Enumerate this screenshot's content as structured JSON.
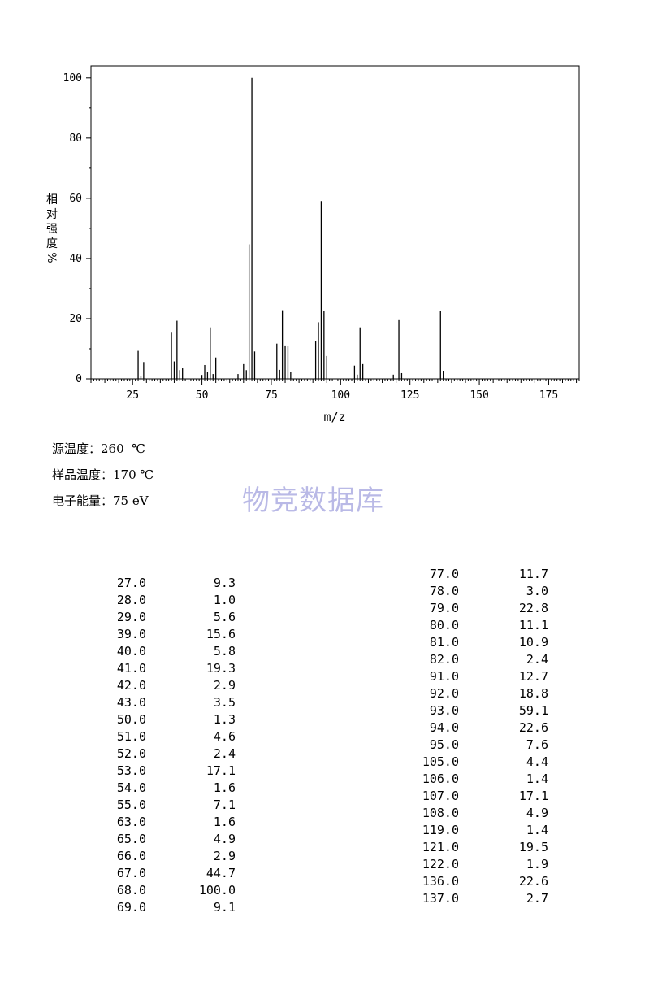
{
  "chart_data": {
    "type": "bar",
    "xlabel": "m/z",
    "ylabel_chars": [
      "相",
      "对",
      "强",
      "度",
      "%"
    ],
    "xlim": [
      10,
      186
    ],
    "ylim": [
      0,
      104
    ],
    "xticks": [
      25,
      50,
      75,
      100,
      125,
      150,
      175
    ],
    "yticks": [
      0,
      20,
      40,
      60,
      80,
      100
    ],
    "peaks": [
      {
        "mz": 27.0,
        "intensity": 9.3
      },
      {
        "mz": 28.0,
        "intensity": 1.0
      },
      {
        "mz": 29.0,
        "intensity": 5.6
      },
      {
        "mz": 39.0,
        "intensity": 15.6
      },
      {
        "mz": 40.0,
        "intensity": 5.8
      },
      {
        "mz": 41.0,
        "intensity": 19.3
      },
      {
        "mz": 42.0,
        "intensity": 2.9
      },
      {
        "mz": 43.0,
        "intensity": 3.5
      },
      {
        "mz": 50.0,
        "intensity": 1.3
      },
      {
        "mz": 51.0,
        "intensity": 4.6
      },
      {
        "mz": 52.0,
        "intensity": 2.4
      },
      {
        "mz": 53.0,
        "intensity": 17.1
      },
      {
        "mz": 54.0,
        "intensity": 1.6
      },
      {
        "mz": 55.0,
        "intensity": 7.1
      },
      {
        "mz": 63.0,
        "intensity": 1.6
      },
      {
        "mz": 65.0,
        "intensity": 4.9
      },
      {
        "mz": 66.0,
        "intensity": 2.9
      },
      {
        "mz": 67.0,
        "intensity": 44.7
      },
      {
        "mz": 68.0,
        "intensity": 100.0
      },
      {
        "mz": 69.0,
        "intensity": 9.1
      },
      {
        "mz": 77.0,
        "intensity": 11.7
      },
      {
        "mz": 78.0,
        "intensity": 3.0
      },
      {
        "mz": 79.0,
        "intensity": 22.8
      },
      {
        "mz": 80.0,
        "intensity": 11.1
      },
      {
        "mz": 81.0,
        "intensity": 10.9
      },
      {
        "mz": 82.0,
        "intensity": 2.4
      },
      {
        "mz": 91.0,
        "intensity": 12.7
      },
      {
        "mz": 92.0,
        "intensity": 18.8
      },
      {
        "mz": 93.0,
        "intensity": 59.1
      },
      {
        "mz": 94.0,
        "intensity": 22.6
      },
      {
        "mz": 95.0,
        "intensity": 7.6
      },
      {
        "mz": 105.0,
        "intensity": 4.4
      },
      {
        "mz": 106.0,
        "intensity": 1.4
      },
      {
        "mz": 107.0,
        "intensity": 17.1
      },
      {
        "mz": 108.0,
        "intensity": 4.9
      },
      {
        "mz": 119.0,
        "intensity": 1.4
      },
      {
        "mz": 121.0,
        "intensity": 19.5
      },
      {
        "mz": 122.0,
        "intensity": 1.9
      },
      {
        "mz": 136.0,
        "intensity": 22.6
      },
      {
        "mz": 137.0,
        "intensity": 2.7
      }
    ]
  },
  "conditions": {
    "source_temp": "源温度：260  ℃",
    "sample_temp": "样品温度：170 ℃",
    "electron_energy": "电子能量：75 eV"
  },
  "watermark": "物竞数据库",
  "table_left": [
    [
      "27.0",
      "9.3"
    ],
    [
      "28.0",
      "1.0"
    ],
    [
      "29.0",
      "5.6"
    ],
    [
      "39.0",
      "15.6"
    ],
    [
      "40.0",
      "5.8"
    ],
    [
      "41.0",
      "19.3"
    ],
    [
      "42.0",
      "2.9"
    ],
    [
      "43.0",
      "3.5"
    ],
    [
      "50.0",
      "1.3"
    ],
    [
      "51.0",
      "4.6"
    ],
    [
      "52.0",
      "2.4"
    ],
    [
      "53.0",
      "17.1"
    ],
    [
      "54.0",
      "1.6"
    ],
    [
      "55.0",
      "7.1"
    ],
    [
      "63.0",
      "1.6"
    ],
    [
      "65.0",
      "4.9"
    ],
    [
      "66.0",
      "2.9"
    ],
    [
      "67.0",
      "44.7"
    ],
    [
      "68.0",
      "100.0"
    ],
    [
      "69.0",
      "9.1"
    ]
  ],
  "table_right": [
    [
      "77.0",
      "11.7"
    ],
    [
      "78.0",
      "3.0"
    ],
    [
      "79.0",
      "22.8"
    ],
    [
      "80.0",
      "11.1"
    ],
    [
      "81.0",
      "10.9"
    ],
    [
      "82.0",
      "2.4"
    ],
    [
      "91.0",
      "12.7"
    ],
    [
      "92.0",
      "18.8"
    ],
    [
      "93.0",
      "59.1"
    ],
    [
      "94.0",
      "22.6"
    ],
    [
      "95.0",
      "7.6"
    ],
    [
      "105.0",
      "4.4"
    ],
    [
      "106.0",
      "1.4"
    ],
    [
      "107.0",
      "17.1"
    ],
    [
      "108.0",
      "4.9"
    ],
    [
      "119.0",
      "1.4"
    ],
    [
      "121.0",
      "19.5"
    ],
    [
      "122.0",
      "1.9"
    ],
    [
      "136.0",
      "22.6"
    ],
    [
      "137.0",
      "2.7"
    ]
  ]
}
